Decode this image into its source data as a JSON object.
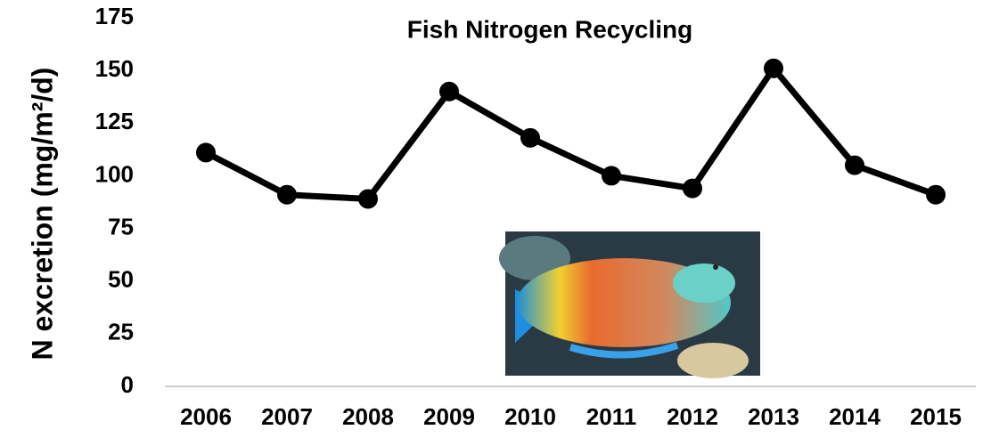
{
  "chart_data": {
    "type": "line",
    "title": "Fish Nitrogen Recycling",
    "y_label": "N excretion (mg/m²/d)",
    "categories": [
      "2006",
      "2007",
      "2008",
      "2009",
      "2010",
      "2011",
      "2012",
      "2013",
      "2014",
      "2015"
    ],
    "values": [
      111,
      91,
      89,
      140,
      118,
      100,
      94,
      151,
      105,
      91
    ],
    "color": "#000000",
    "ylim": [
      0,
      175
    ],
    "yticks": [
      0,
      25,
      50,
      75,
      100,
      125,
      150,
      175
    ],
    "grid": false
  }
}
